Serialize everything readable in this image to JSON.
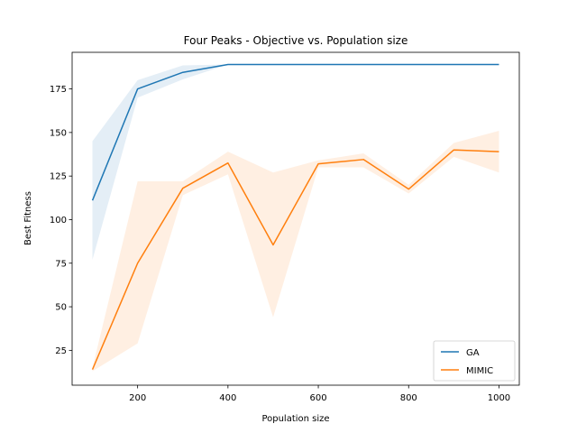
{
  "chart_data": {
    "type": "line",
    "title": "Four Peaks - Objective vs. Population size",
    "xlabel": "Population size",
    "ylabel": "Best Fitness",
    "xlim": [
      55,
      1045
    ],
    "ylim": [
      5,
      196
    ],
    "xticks": [
      200,
      400,
      600,
      800,
      1000
    ],
    "yticks": [
      25,
      50,
      75,
      100,
      125,
      150,
      175
    ],
    "grid": false,
    "legend_position": "lower-right",
    "x": [
      100,
      200,
      300,
      400,
      500,
      600,
      700,
      800,
      900,
      1000
    ],
    "series": [
      {
        "name": "GA",
        "color": "#1f77b4",
        "values": [
          111,
          175,
          184.5,
          189,
          189,
          189,
          189,
          189,
          189,
          189
        ],
        "lower": [
          77,
          170,
          180.5,
          189,
          189,
          189,
          189,
          189,
          189,
          189
        ],
        "upper": [
          145,
          180,
          188.5,
          189,
          189,
          189,
          189,
          189,
          189,
          189
        ]
      },
      {
        "name": "MIMIC",
        "color": "#ff7f0e",
        "values": [
          14,
          75,
          118,
          132.5,
          85.5,
          132,
          134.5,
          117.5,
          140,
          139
        ],
        "lower": [
          13,
          29,
          114,
          126,
          44,
          130,
          130,
          115,
          136,
          127
        ],
        "upper": [
          15,
          122,
          122,
          139,
          127,
          134,
          138,
          120,
          144,
          151
        ]
      }
    ]
  }
}
